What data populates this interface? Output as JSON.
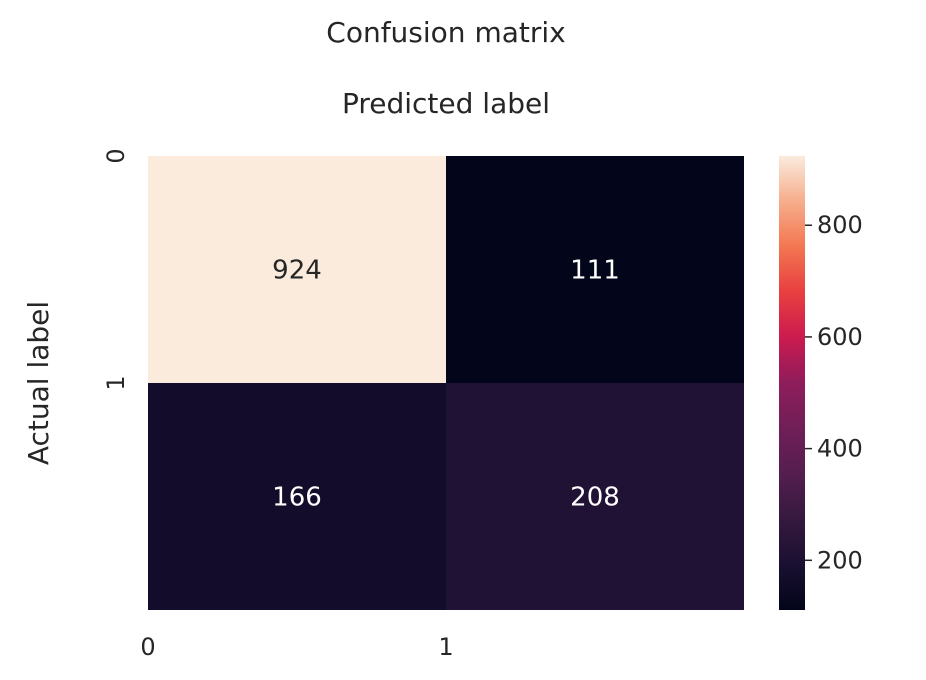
{
  "chart_data": {
    "type": "heatmap",
    "title": "Confusion matrix",
    "xlabel": "Predicted label",
    "ylabel": "Actual label",
    "x_categories": [
      "0",
      "1"
    ],
    "y_categories": [
      "0",
      "1"
    ],
    "values": [
      [
        924,
        111
      ],
      [
        166,
        208
      ]
    ],
    "colormap": "rocket",
    "color_range": [
      111,
      924
    ],
    "colorbar": {
      "ticks": [
        200,
        400,
        600,
        800
      ],
      "tick_labels": [
        "200",
        "400",
        "600",
        "800"
      ]
    },
    "x_ticks_position": "bottom",
    "xlabel_position": "top",
    "grid": false,
    "annotations": true
  }
}
